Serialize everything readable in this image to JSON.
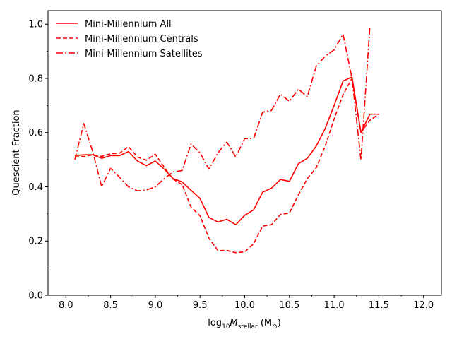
{
  "chart_data": {
    "type": "line",
    "xlabel_parts": {
      "prefix": "log",
      "sub1": "10",
      "mid": "M",
      "sub2": "stellar",
      "unit_open": " (M",
      "unit_sub": "⊙",
      "unit_close": ")"
    },
    "ylabel": "Quescient Fraction",
    "xlim": [
      7.8,
      12.2
    ],
    "ylim": [
      0.0,
      1.05
    ],
    "xticks": [
      8.0,
      8.5,
      9.0,
      9.5,
      10.0,
      10.5,
      11.0,
      11.5,
      12.0
    ],
    "xtick_labels": [
      "8.0",
      "8.5",
      "9.0",
      "9.5",
      "10.0",
      "10.5",
      "11.0",
      "11.5",
      "12.0"
    ],
    "yticks": [
      0.0,
      0.2,
      0.4,
      0.6,
      0.8,
      1.0
    ],
    "ytick_labels": [
      "0.0",
      "0.2",
      "0.4",
      "0.6",
      "0.8",
      "1.0"
    ],
    "grid": false,
    "legend_position": "top-left",
    "color": "#ff0000",
    "series": [
      {
        "name": "Mini-Millennium All",
        "style": "solid",
        "x": [
          8.1,
          8.2,
          8.3,
          8.4,
          8.5,
          8.6,
          8.7,
          8.8,
          8.9,
          9.0,
          9.1,
          9.2,
          9.3,
          9.4,
          9.5,
          9.6,
          9.7,
          9.8,
          9.9,
          10.0,
          10.1,
          10.2,
          10.3,
          10.4,
          10.5,
          10.6,
          10.7,
          10.8,
          10.9,
          11.0,
          11.1,
          11.2,
          11.3,
          11.4,
          11.5
        ],
        "y": [
          0.515,
          0.518,
          0.518,
          0.505,
          0.515,
          0.515,
          0.53,
          0.495,
          0.478,
          0.495,
          0.465,
          0.43,
          0.418,
          0.387,
          0.357,
          0.287,
          0.27,
          0.28,
          0.26,
          0.295,
          0.315,
          0.38,
          0.395,
          0.427,
          0.42,
          0.485,
          0.505,
          0.55,
          0.615,
          0.7,
          0.79,
          0.805,
          0.6,
          0.668,
          0.668
        ]
      },
      {
        "name": "Mini-Millennium Centrals",
        "style": "dashed",
        "x": [
          8.1,
          8.2,
          8.3,
          8.4,
          8.5,
          8.6,
          8.7,
          8.8,
          8.9,
          9.0,
          9.1,
          9.2,
          9.3,
          9.4,
          9.5,
          9.6,
          9.7,
          9.8,
          9.9,
          10.0,
          10.1,
          10.2,
          10.3,
          10.4,
          10.5,
          10.6,
          10.7,
          10.8,
          10.9,
          11.0,
          11.1,
          11.2,
          11.3,
          11.4,
          11.5
        ],
        "y": [
          0.51,
          0.512,
          0.518,
          0.512,
          0.522,
          0.524,
          0.548,
          0.51,
          0.498,
          0.52,
          0.472,
          0.428,
          0.408,
          0.325,
          0.293,
          0.21,
          0.165,
          0.165,
          0.157,
          0.16,
          0.19,
          0.255,
          0.26,
          0.298,
          0.303,
          0.37,
          0.43,
          0.47,
          0.55,
          0.65,
          0.74,
          0.8,
          0.6,
          0.645,
          0.668
        ]
      },
      {
        "name": "Mini-Millennium Satellites",
        "style": "dashdot",
        "x": [
          8.1,
          8.2,
          8.3,
          8.4,
          8.5,
          8.6,
          8.7,
          8.8,
          8.9,
          9.0,
          9.1,
          9.2,
          9.3,
          9.4,
          9.5,
          9.6,
          9.7,
          9.8,
          9.9,
          10.0,
          10.1,
          10.2,
          10.3,
          10.4,
          10.5,
          10.6,
          10.7,
          10.8,
          10.9,
          11.0,
          11.1,
          11.2,
          11.3,
          11.4
        ],
        "y": [
          0.5,
          0.633,
          0.53,
          0.4,
          0.468,
          0.435,
          0.4,
          0.385,
          0.388,
          0.4,
          0.43,
          0.455,
          0.46,
          0.558,
          0.525,
          0.465,
          0.525,
          0.565,
          0.51,
          0.578,
          0.578,
          0.675,
          0.682,
          0.742,
          0.715,
          0.76,
          0.733,
          0.845,
          0.882,
          0.905,
          0.963,
          0.8,
          0.5,
          0.99
        ]
      }
    ]
  }
}
